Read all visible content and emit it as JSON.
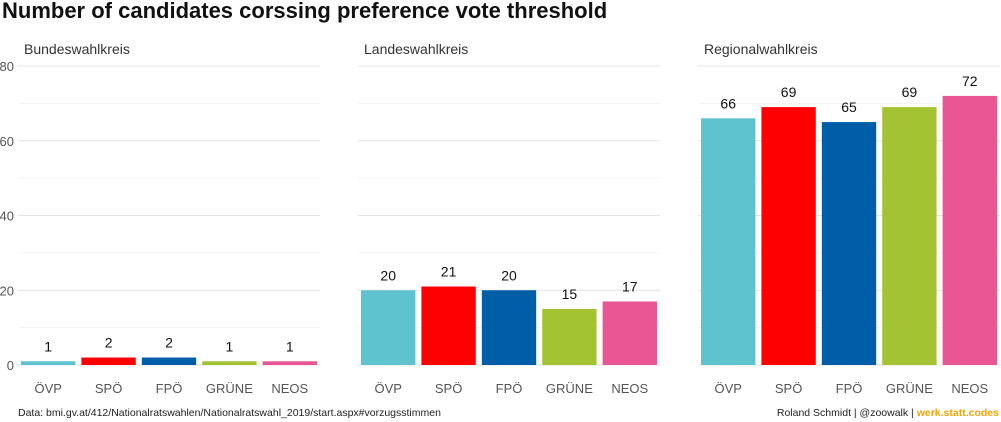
{
  "title": "Number of candidates corssing preference vote threshold",
  "footer": {
    "source": "Data: bmi.gv.at/412/Nationalratswahlen/Nationalratswahl_2019/start.aspx#vorzugsstimmen",
    "credit_author": "Roland Schmidt | @zoowalk | ",
    "credit_brand": "werk.statt.codes"
  },
  "chart_data": {
    "type": "bar",
    "ylim": [
      0,
      80
    ],
    "yticks": [
      0,
      20,
      40,
      60,
      80
    ],
    "grid": true,
    "categories": [
      "ÖVP",
      "SPÖ",
      "FPÖ",
      "GRÜNE",
      "NEOS"
    ],
    "colors": [
      "#5fc3cf",
      "#ff0000",
      "#005da8",
      "#a3c332",
      "#ea5693"
    ],
    "facets": [
      {
        "name": "Bundeswahlkreis",
        "values": [
          1,
          2,
          2,
          1,
          1
        ]
      },
      {
        "name": "Landeswahlkreis",
        "values": [
          20,
          21,
          20,
          15,
          17
        ]
      },
      {
        "name": "Regionalwahlkreis",
        "values": [
          66,
          69,
          65,
          69,
          72
        ]
      }
    ]
  }
}
